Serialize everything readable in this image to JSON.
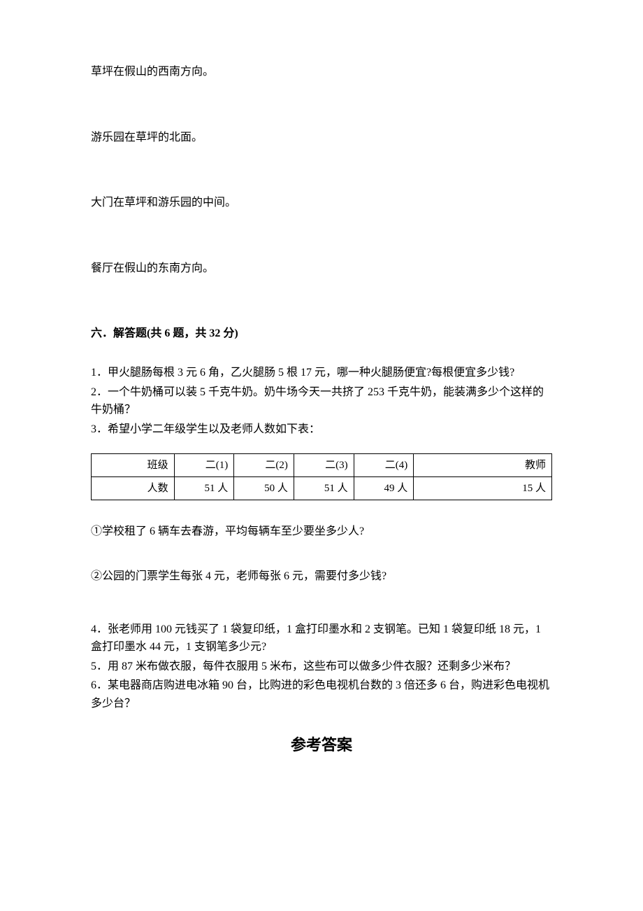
{
  "directions": {
    "d1": "草坪在假山的西南方向。",
    "d2": "游乐园在草坪的北面。",
    "d3": "大门在草坪和游乐园的中间。",
    "d4": "餐厅在假山的东南方向。"
  },
  "section6": {
    "title": "六．解答题(共 6 题，共 32 分)",
    "q1": "1．甲火腿肠每根 3 元 6 角，乙火腿肠 5 根 17 元，哪一种火腿肠便宜?每根便宜多少钱?",
    "q2": "2．一个牛奶桶可以装 5 千克牛奶。奶牛场今天一共挤了 253 千克牛奶，能装满多少个这样的牛奶桶？",
    "q3": "3．希望小学二年级学生以及老师人数如下表：",
    "table": {
      "header": [
        "班级",
        "二(1)",
        "二(2)",
        "二(3)",
        "二(4)",
        "教师"
      ],
      "row": [
        "人数",
        "51 人",
        "50 人",
        "51 人",
        "49 人",
        "15 人"
      ]
    },
    "q3a": "①学校租了 6 辆车去春游，平均每辆车至少要坐多少人?",
    "q3b": "②公园的门票学生每张 4 元，老师每张 6 元，需要付多少钱?",
    "q4": "4．张老师用 100 元钱买了 1 袋复印纸，1 盒打印墨水和 2 支钢笔。已知 1 袋复印纸 18 元，1 盒打印墨水 44 元，1 支钢笔多少元?",
    "q5": "5．用 87 米布做衣服，每件衣服用 5 米布，这些布可以做多少件衣服？还剩多少米布？",
    "q6": "6．某电器商店购进电冰箱 90 台，比购进的彩色电视机台数的 3 倍还多 6 台，购进彩色电视机多少台？"
  },
  "answer_header": "参考答案"
}
